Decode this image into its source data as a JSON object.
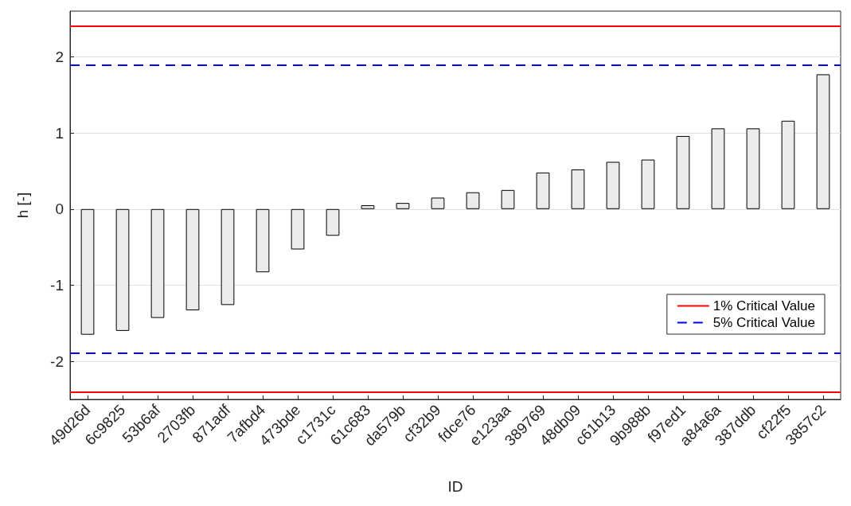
{
  "chart_data": {
    "type": "bar",
    "xlabel": "ID",
    "ylabel": "h [-]",
    "categories": [
      "49d26d",
      "6c9825",
      "53b6af",
      "2703fb",
      "871adf",
      "7afbd4",
      "473bde",
      "c1731c",
      "61c683",
      "da579b",
      "cf32b9",
      "fdce76",
      "e123aa",
      "389769",
      "48db09",
      "c61b13",
      "9b988b",
      "f97ed1",
      "a84a6a",
      "387ddb",
      "cf22f5",
      "3857c2"
    ],
    "values": [
      -1.65,
      -1.6,
      -1.43,
      -1.33,
      -1.26,
      -0.83,
      -0.53,
      -0.35,
      0.05,
      0.08,
      0.15,
      0.22,
      0.25,
      0.48,
      0.52,
      0.62,
      0.65,
      0.96,
      1.06,
      1.06,
      1.16,
      1.77
    ],
    "color": "#ebebeb",
    "ylim": [
      -2.5,
      2.6
    ],
    "yticks": [
      -2,
      -1,
      0,
      1,
      2
    ],
    "grid": "y",
    "legend": "bottom right",
    "ref_lines": [
      {
        "axis": "y",
        "value": 2.4,
        "label": "1% Critical Value",
        "color": "#ff0000",
        "line_style": "solid"
      },
      {
        "axis": "y",
        "value": -2.4,
        "color": "#ff0000",
        "line_style": "solid"
      },
      {
        "axis": "y",
        "value": 1.89,
        "label": "5% Critical Value",
        "color": "#0000ff",
        "line_style": "dashed"
      },
      {
        "axis": "y",
        "value": -1.89,
        "color": "#0000ff",
        "line_style": "dashed"
      }
    ]
  }
}
